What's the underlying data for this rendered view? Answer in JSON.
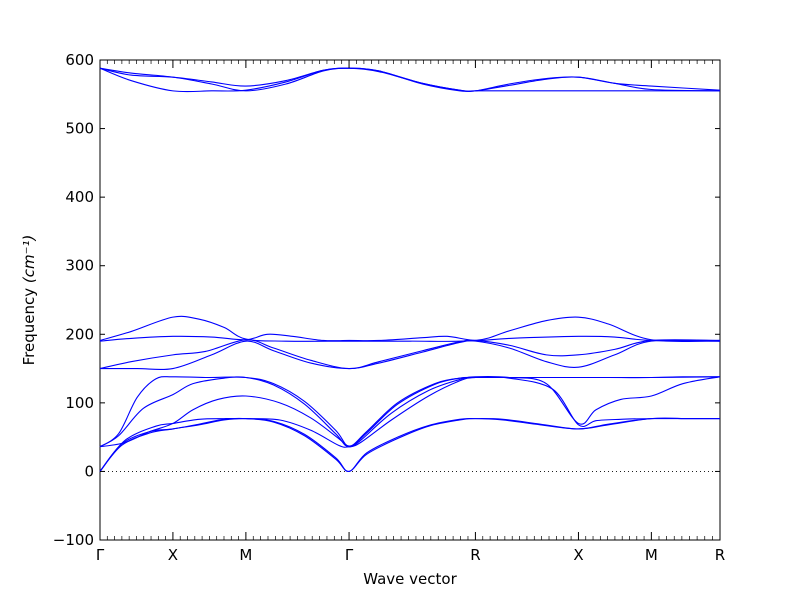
{
  "chart_data": {
    "type": "line",
    "title": "",
    "xlabel": "Wave vector",
    "ylabel": "Frequency",
    "ylabel_unit": "(cm⁻¹)",
    "ylim": [
      -100,
      600
    ],
    "yticks": [
      -100,
      0,
      100,
      200,
      300,
      400,
      500,
      600
    ],
    "x_range": [
      0,
      1
    ],
    "high_symmetry_points": [
      {
        "label": "Γ",
        "x": 0.0
      },
      {
        "label": "X",
        "x": 0.1176
      },
      {
        "label": "M",
        "x": 0.2353
      },
      {
        "label": "Γ",
        "x": 0.4017
      },
      {
        "label": "R",
        "x": 0.6055
      },
      {
        "label": "X",
        "x": 0.7717
      },
      {
        "label": "M",
        "x": 0.8893
      },
      {
        "label": "R",
        "x": 1.0
      }
    ],
    "zero_line": {
      "y": 0,
      "style": "dotted"
    },
    "grid": false,
    "band_color": "#0000ff",
    "series": [
      {
        "values": [
          [
            0,
            0
          ],
          [
            0.035,
            38
          ],
          [
            0.08,
            56
          ],
          [
            0.1176,
            62
          ],
          [
            0.16,
            68
          ],
          [
            0.2,
            75
          ],
          [
            0.2353,
            77
          ],
          [
            0.28,
            72
          ],
          [
            0.33,
            52
          ],
          [
            0.38,
            18
          ],
          [
            0.4017,
            0
          ],
          [
            0.43,
            25
          ],
          [
            0.48,
            48
          ],
          [
            0.53,
            66
          ],
          [
            0.58,
            75
          ],
          [
            0.6055,
            77
          ],
          [
            0.65,
            75
          ],
          [
            0.71,
            68
          ],
          [
            0.7717,
            62
          ],
          [
            0.82,
            68
          ],
          [
            0.8893,
            77
          ],
          [
            0.95,
            77
          ],
          [
            1.0,
            77
          ]
        ]
      },
      {
        "values": [
          [
            0,
            0
          ],
          [
            0.035,
            40
          ],
          [
            0.08,
            58
          ],
          [
            0.1176,
            62
          ],
          [
            0.16,
            69
          ],
          [
            0.2,
            76
          ],
          [
            0.2353,
            77
          ],
          [
            0.28,
            73
          ],
          [
            0.33,
            54
          ],
          [
            0.38,
            20
          ],
          [
            0.4017,
            0
          ],
          [
            0.43,
            27
          ],
          [
            0.48,
            50
          ],
          [
            0.53,
            67
          ],
          [
            0.58,
            76
          ],
          [
            0.6055,
            77
          ],
          [
            0.65,
            76
          ],
          [
            0.71,
            69
          ],
          [
            0.7717,
            62
          ],
          [
            0.82,
            69
          ],
          [
            0.8893,
            77
          ],
          [
            0.95,
            77
          ],
          [
            1.0,
            77
          ]
        ]
      },
      {
        "values": [
          [
            0,
            0
          ],
          [
            0.04,
            45
          ],
          [
            0.09,
            66
          ],
          [
            0.1176,
            70
          ],
          [
            0.16,
            76
          ],
          [
            0.2,
            77
          ],
          [
            0.2353,
            77
          ],
          [
            0.29,
            75
          ],
          [
            0.34,
            60
          ],
          [
            0.385,
            38
          ],
          [
            0.4017,
            36
          ],
          [
            0.42,
            42
          ],
          [
            0.47,
            75
          ],
          [
            0.53,
            110
          ],
          [
            0.58,
            132
          ],
          [
            0.6055,
            137
          ],
          [
            0.66,
            136
          ],
          [
            0.73,
            120
          ],
          [
            0.7717,
            68
          ],
          [
            0.8,
            74
          ],
          [
            0.84,
            76
          ],
          [
            0.8893,
            77
          ],
          [
            1.0,
            77
          ]
        ]
      },
      {
        "values": [
          [
            0,
            36
          ],
          [
            0.04,
            42
          ],
          [
            0.08,
            58
          ],
          [
            0.1176,
            70
          ],
          [
            0.15,
            90
          ],
          [
            0.19,
            105
          ],
          [
            0.2353,
            110
          ],
          [
            0.29,
            100
          ],
          [
            0.34,
            78
          ],
          [
            0.385,
            48
          ],
          [
            0.4017,
            36
          ],
          [
            0.42,
            45
          ],
          [
            0.47,
            85
          ],
          [
            0.53,
            118
          ],
          [
            0.58,
            134
          ],
          [
            0.6055,
            138
          ],
          [
            0.66,
            137
          ],
          [
            0.72,
            128
          ],
          [
            0.7717,
            70
          ],
          [
            0.8,
            90
          ],
          [
            0.84,
            105
          ],
          [
            0.8893,
            110
          ],
          [
            0.94,
            128
          ],
          [
            1.0,
            138
          ]
        ]
      },
      {
        "values": [
          [
            0,
            36
          ],
          [
            0.03,
            55
          ],
          [
            0.06,
            108
          ],
          [
            0.09,
            135
          ],
          [
            0.1176,
            138
          ],
          [
            0.17,
            137
          ],
          [
            0.2353,
            137
          ],
          [
            0.28,
            128
          ],
          [
            0.33,
            102
          ],
          [
            0.38,
            60
          ],
          [
            0.4017,
            37
          ],
          [
            0.43,
            58
          ],
          [
            0.48,
            100
          ],
          [
            0.54,
            128
          ],
          [
            0.58,
            136
          ],
          [
            0.6055,
            137
          ],
          [
            0.66,
            137
          ],
          [
            0.7717,
            137
          ],
          [
            0.82,
            137
          ],
          [
            0.8893,
            137
          ],
          [
            0.94,
            138
          ],
          [
            1.0,
            138
          ]
        ]
      },
      {
        "values": [
          [
            0,
            36
          ],
          [
            0.03,
            52
          ],
          [
            0.07,
            92
          ],
          [
            0.1176,
            112
          ],
          [
            0.15,
            128
          ],
          [
            0.2,
            136
          ],
          [
            0.2353,
            137
          ],
          [
            0.28,
            126
          ],
          [
            0.33,
            98
          ],
          [
            0.38,
            55
          ],
          [
            0.4017,
            36
          ],
          [
            0.43,
            56
          ],
          [
            0.48,
            98
          ],
          [
            0.54,
            127
          ],
          [
            0.58,
            136
          ],
          [
            0.6055,
            137
          ],
          [
            0.66,
            137
          ],
          [
            0.7717,
            137
          ],
          [
            0.84,
            137
          ],
          [
            0.8893,
            137
          ],
          [
            1.0,
            138
          ]
        ]
      },
      {
        "values": [
          [
            0,
            150
          ],
          [
            0.06,
            150
          ],
          [
            0.1176,
            150
          ],
          [
            0.18,
            170
          ],
          [
            0.2353,
            190
          ],
          [
            0.28,
            176
          ],
          [
            0.34,
            158
          ],
          [
            0.4017,
            150
          ],
          [
            0.45,
            158
          ],
          [
            0.52,
            174
          ],
          [
            0.58,
            188
          ],
          [
            0.6055,
            190
          ],
          [
            0.66,
            180
          ],
          [
            0.72,
            160
          ],
          [
            0.7717,
            152
          ],
          [
            0.83,
            170
          ],
          [
            0.8893,
            190
          ],
          [
            1.0,
            190
          ]
        ]
      },
      {
        "values": [
          [
            0,
            150
          ],
          [
            0.05,
            160
          ],
          [
            0.1176,
            170
          ],
          [
            0.17,
            175
          ],
          [
            0.2353,
            192
          ],
          [
            0.28,
            180
          ],
          [
            0.34,
            162
          ],
          [
            0.4017,
            150
          ],
          [
            0.45,
            160
          ],
          [
            0.52,
            176
          ],
          [
            0.58,
            189
          ],
          [
            0.6055,
            191
          ],
          [
            0.66,
            184
          ],
          [
            0.72,
            170
          ],
          [
            0.7717,
            170
          ],
          [
            0.83,
            178
          ],
          [
            0.8893,
            191
          ],
          [
            1.0,
            191
          ]
        ]
      },
      {
        "values": [
          [
            0,
            190
          ],
          [
            0.05,
            194
          ],
          [
            0.1176,
            197
          ],
          [
            0.18,
            196
          ],
          [
            0.2353,
            192
          ],
          [
            0.27,
            200
          ],
          [
            0.31,
            197
          ],
          [
            0.36,
            191
          ],
          [
            0.4017,
            191
          ],
          [
            0.45,
            191
          ],
          [
            0.52,
            195
          ],
          [
            0.56,
            197
          ],
          [
            0.6055,
            191
          ],
          [
            0.66,
            194
          ],
          [
            0.7717,
            197
          ],
          [
            0.83,
            196
          ],
          [
            0.8893,
            191
          ],
          [
            1.0,
            191
          ]
        ]
      },
      {
        "values": [
          [
            0,
            191
          ],
          [
            0.05,
            204
          ],
          [
            0.1176,
            225
          ],
          [
            0.16,
            222
          ],
          [
            0.2,
            210
          ],
          [
            0.2353,
            193
          ],
          [
            0.3,
            190
          ],
          [
            0.4017,
            190
          ],
          [
            0.5,
            190
          ],
          [
            0.6055,
            191
          ],
          [
            0.66,
            205
          ],
          [
            0.72,
            220
          ],
          [
            0.7717,
            225
          ],
          [
            0.82,
            215
          ],
          [
            0.8893,
            192
          ],
          [
            1.0,
            190
          ]
        ]
      },
      {
        "values": [
          [
            0,
            588
          ],
          [
            0.05,
            581
          ],
          [
            0.1176,
            575
          ],
          [
            0.18,
            565
          ],
          [
            0.2353,
            555
          ],
          [
            0.3,
            565
          ],
          [
            0.36,
            584
          ],
          [
            0.4017,
            588
          ],
          [
            0.45,
            584
          ],
          [
            0.52,
            565
          ],
          [
            0.58,
            555
          ],
          [
            0.6055,
            555
          ],
          [
            0.66,
            555
          ],
          [
            0.7717,
            555
          ],
          [
            0.83,
            555
          ],
          [
            0.8893,
            555
          ],
          [
            1.0,
            555
          ]
        ]
      },
      {
        "values": [
          [
            0,
            588
          ],
          [
            0.05,
            570
          ],
          [
            0.1176,
            555
          ],
          [
            0.18,
            555
          ],
          [
            0.2353,
            556
          ],
          [
            0.3,
            568
          ],
          [
            0.36,
            585
          ],
          [
            0.4017,
            588
          ],
          [
            0.45,
            584
          ],
          [
            0.52,
            566
          ],
          [
            0.58,
            556
          ],
          [
            0.6055,
            555
          ],
          [
            0.66,
            563
          ],
          [
            0.72,
            572
          ],
          [
            0.7717,
            575
          ],
          [
            0.83,
            566
          ],
          [
            0.8893,
            557
          ],
          [
            1.0,
            555
          ]
        ]
      },
      {
        "values": [
          [
            0,
            588
          ],
          [
            0.05,
            578
          ],
          [
            0.1176,
            575
          ],
          [
            0.18,
            568
          ],
          [
            0.2353,
            562
          ],
          [
            0.3,
            570
          ],
          [
            0.36,
            585
          ],
          [
            0.4017,
            588
          ],
          [
            0.45,
            583
          ],
          [
            0.52,
            566
          ],
          [
            0.58,
            556
          ],
          [
            0.6055,
            555
          ],
          [
            0.66,
            565
          ],
          [
            0.72,
            573
          ],
          [
            0.7717,
            575
          ],
          [
            0.83,
            566
          ],
          [
            0.8893,
            562
          ],
          [
            1.0,
            556
          ]
        ]
      }
    ]
  }
}
